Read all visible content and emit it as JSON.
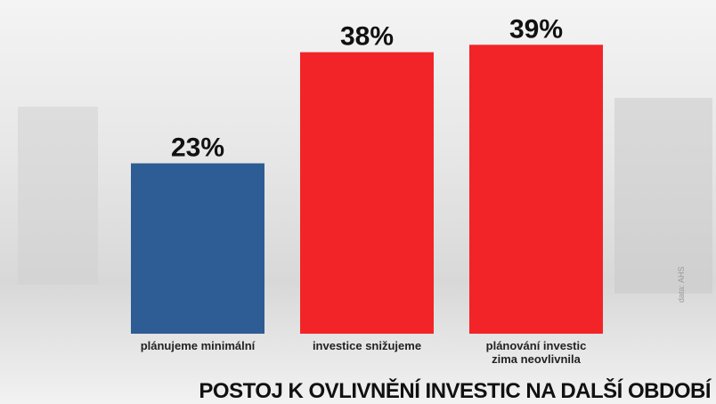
{
  "chart_data": {
    "type": "bar",
    "title": "POSTOJ K OVLIVNĚNÍ INVESTIC NA DALŠÍ OBDOBÍ",
    "source": "data: AHS",
    "categories": [
      "plánujeme minimální",
      "investice snižujeme",
      "plánování investic zima neovlivnila"
    ],
    "values": [
      23,
      38,
      39
    ],
    "value_labels": [
      "23%",
      "38%",
      "39%"
    ],
    "colors": [
      "#2e5c94",
      "#f22427",
      "#f22427"
    ],
    "ylim": [
      0,
      40
    ]
  }
}
